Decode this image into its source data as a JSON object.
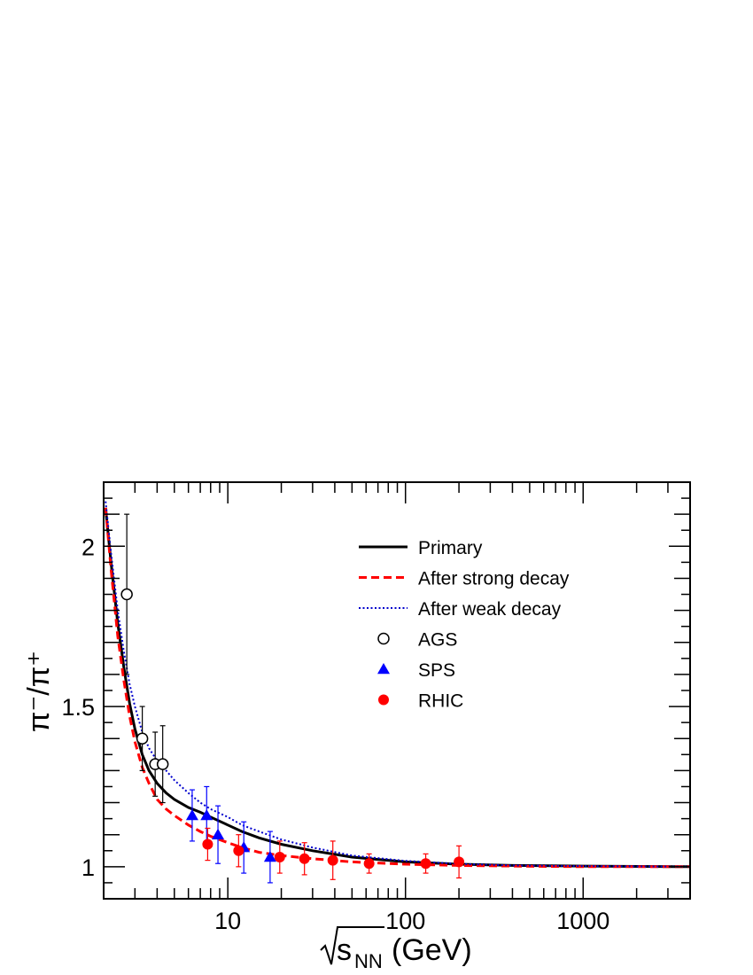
{
  "chart_data": {
    "type": "scatter",
    "xscale": "log",
    "xlim": [
      2,
      4000
    ],
    "ylim": [
      0.9,
      2.2
    ],
    "xticks": [
      10,
      100,
      1000
    ],
    "yticks": [
      1,
      1.5,
      2
    ],
    "xtick_labels": [
      "10",
      "100",
      "1000"
    ],
    "ytick_labels": [
      "1",
      "1.5",
      "2"
    ],
    "ylabel": "π⁻/π⁺",
    "xlabel_sqrt": "s",
    "xlabel_sub": "NN",
    "xlabel_unit": "(GeV)",
    "legend_position": "top-right",
    "curves": [
      {
        "name": "Primary",
        "style": "solid",
        "color": "#000000",
        "x": [
          2.05,
          2.2,
          2.4,
          2.6,
          2.8,
          3.0,
          3.3,
          3.6,
          4.0,
          4.5,
          5,
          6,
          7,
          8,
          10,
          12,
          15,
          20,
          30,
          50,
          100,
          200,
          400,
          1000,
          4000
        ],
        "y": [
          2.12,
          1.95,
          1.76,
          1.62,
          1.51,
          1.43,
          1.35,
          1.3,
          1.26,
          1.23,
          1.21,
          1.185,
          1.17,
          1.155,
          1.13,
          1.11,
          1.09,
          1.07,
          1.05,
          1.03,
          1.015,
          1.008,
          1.004,
          1.002,
          1.0
        ]
      },
      {
        "name": "After strong decay",
        "style": "dashed",
        "color": "#ff0000",
        "x": [
          2.05,
          2.2,
          2.4,
          2.6,
          2.8,
          3.0,
          3.3,
          3.6,
          4.0,
          4.5,
          5,
          6,
          7,
          8,
          10,
          12,
          15,
          20,
          30,
          50,
          100,
          200,
          400,
          1000,
          4000
        ],
        "y": [
          2.12,
          1.93,
          1.72,
          1.58,
          1.47,
          1.39,
          1.31,
          1.26,
          1.21,
          1.18,
          1.16,
          1.13,
          1.11,
          1.095,
          1.075,
          1.06,
          1.045,
          1.035,
          1.025,
          1.015,
          1.008,
          1.004,
          1.002,
          1.0,
          1.0
        ]
      },
      {
        "name": "After weak decay",
        "style": "dotted",
        "color": "#0000cc",
        "x": [
          2.05,
          2.2,
          2.4,
          2.6,
          2.8,
          3.0,
          3.3,
          3.6,
          4.0,
          4.5,
          5,
          6,
          7,
          8,
          10,
          12,
          15,
          20,
          30,
          50,
          100,
          200,
          400,
          1000,
          4000
        ],
        "y": [
          2.14,
          1.98,
          1.8,
          1.67,
          1.57,
          1.5,
          1.42,
          1.37,
          1.33,
          1.3,
          1.27,
          1.23,
          1.2,
          1.18,
          1.155,
          1.13,
          1.11,
          1.085,
          1.06,
          1.035,
          1.018,
          1.009,
          1.004,
          1.002,
          1.0
        ]
      }
    ],
    "series": [
      {
        "name": "AGS",
        "marker": "open-circle",
        "color": "#000000",
        "x": [
          2.7,
          3.3,
          3.9,
          4.3
        ],
        "y": [
          1.85,
          1.4,
          1.32,
          1.32
        ],
        "err": [
          0.25,
          0.1,
          0.1,
          0.12
        ]
      },
      {
        "name": "SPS",
        "marker": "triangle",
        "color": "#0000ff",
        "x": [
          6.3,
          7.6,
          8.8,
          12.3,
          17.3
        ],
        "y": [
          1.16,
          1.16,
          1.1,
          1.06,
          1.03
        ],
        "err": [
          0.08,
          0.09,
          0.09,
          0.08,
          0.08
        ]
      },
      {
        "name": "RHIC",
        "marker": "filled-circle",
        "color": "#ff0000",
        "x": [
          7.7,
          11.5,
          19.6,
          27,
          39,
          62.4,
          130,
          200
        ],
        "y": [
          1.07,
          1.05,
          1.03,
          1.025,
          1.02,
          1.01,
          1.01,
          1.015
        ],
        "err": [
          0.05,
          0.05,
          0.05,
          0.05,
          0.06,
          0.03,
          0.03,
          0.05
        ]
      }
    ]
  }
}
